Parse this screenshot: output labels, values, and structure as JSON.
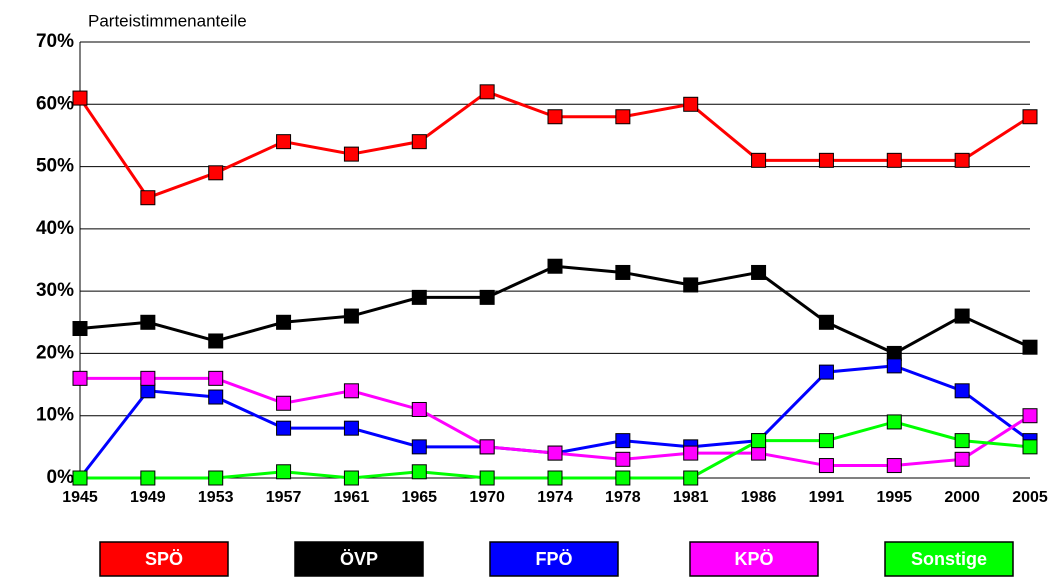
{
  "chart_data": {
    "type": "line",
    "y_label": "Parteistimmenanteile",
    "categories": [
      "1945",
      "1949",
      "1953",
      "1957",
      "1961",
      "1965",
      "1970",
      "1974",
      "1978",
      "1981",
      "1986",
      "1991",
      "1995",
      "2000",
      "2005"
    ],
    "ylim": [
      0,
      70
    ],
    "yticks": [
      {
        "value": 0,
        "label": "0%"
      },
      {
        "value": 10,
        "label": "10%"
      },
      {
        "value": 20,
        "label": "20%"
      },
      {
        "value": 30,
        "label": "30%"
      },
      {
        "value": 40,
        "label": "40%"
      },
      {
        "value": 50,
        "label": "50%"
      },
      {
        "value": 60,
        "label": "60%"
      },
      {
        "value": 70,
        "label": "70%"
      }
    ],
    "grid": true,
    "series": [
      {
        "name": "SPÖ",
        "color": "#ff0000",
        "values": [
          61,
          45,
          49,
          54,
          52,
          54,
          62,
          58,
          58,
          60,
          51,
          51,
          51,
          51,
          58
        ]
      },
      {
        "name": "ÖVP",
        "color": "#000000",
        "values": [
          24,
          25,
          22,
          25,
          26,
          29,
          29,
          34,
          33,
          31,
          33,
          25,
          20,
          26,
          21
        ]
      },
      {
        "name": "FPÖ",
        "color": "#0000ff",
        "values": [
          0,
          14,
          13,
          8,
          8,
          5,
          5,
          4,
          6,
          5,
          6,
          17,
          18,
          14,
          6
        ]
      },
      {
        "name": "KPÖ",
        "color": "#ff00ff",
        "values": [
          16,
          16,
          16,
          12,
          14,
          11,
          5,
          4,
          3,
          4,
          4,
          2,
          2,
          3,
          10
        ]
      },
      {
        "name": "Sonstige",
        "color": "#00ff00",
        "values": [
          0,
          0,
          0,
          1,
          0,
          1,
          0,
          0,
          0,
          0,
          6,
          6,
          9,
          6,
          5
        ]
      }
    ]
  }
}
